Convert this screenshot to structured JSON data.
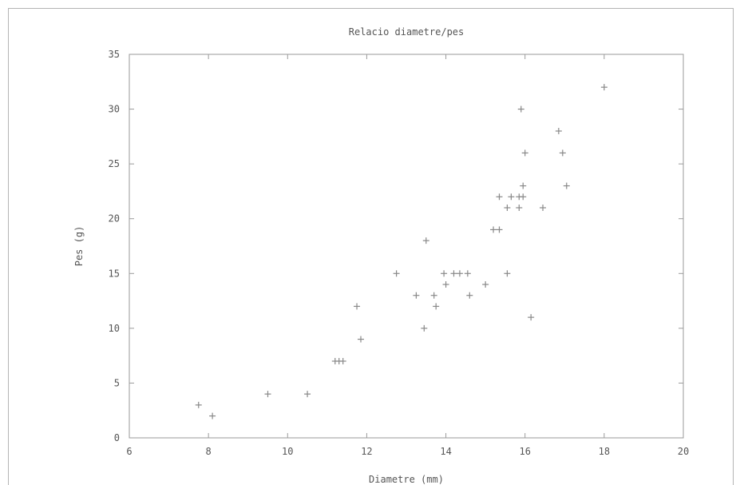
{
  "chart_data": {
    "type": "scatter",
    "title": "Relacio diametre/pes",
    "xlabel": "Diametre (mm)",
    "ylabel": "Pes (g)",
    "xlim": [
      6,
      20
    ],
    "ylim": [
      0,
      35
    ],
    "xticks": [
      "6",
      "8",
      "10",
      "12",
      "14",
      "16",
      "18",
      "20"
    ],
    "yticks": [
      "0",
      "5",
      "10",
      "15",
      "20",
      "25",
      "30",
      "35"
    ],
    "grid": false,
    "marker": "+",
    "marker_color": "#888888",
    "points": [
      {
        "x": 7.75,
        "y": 3
      },
      {
        "x": 8.1,
        "y": 2
      },
      {
        "x": 9.5,
        "y": 4
      },
      {
        "x": 10.5,
        "y": 4
      },
      {
        "x": 11.2,
        "y": 7
      },
      {
        "x": 11.3,
        "y": 7
      },
      {
        "x": 11.4,
        "y": 7
      },
      {
        "x": 11.75,
        "y": 12
      },
      {
        "x": 11.85,
        "y": 9
      },
      {
        "x": 12.75,
        "y": 15
      },
      {
        "x": 13.25,
        "y": 13
      },
      {
        "x": 13.45,
        "y": 10
      },
      {
        "x": 13.5,
        "y": 18
      },
      {
        "x": 13.7,
        "y": 13
      },
      {
        "x": 13.75,
        "y": 12
      },
      {
        "x": 13.95,
        "y": 15
      },
      {
        "x": 14.0,
        "y": 14
      },
      {
        "x": 14.2,
        "y": 15
      },
      {
        "x": 14.35,
        "y": 15
      },
      {
        "x": 14.55,
        "y": 15
      },
      {
        "x": 14.6,
        "y": 13
      },
      {
        "x": 15.0,
        "y": 14
      },
      {
        "x": 15.2,
        "y": 19
      },
      {
        "x": 15.35,
        "y": 19
      },
      {
        "x": 15.35,
        "y": 22
      },
      {
        "x": 15.55,
        "y": 21
      },
      {
        "x": 15.55,
        "y": 15
      },
      {
        "x": 15.65,
        "y": 22
      },
      {
        "x": 15.85,
        "y": 22
      },
      {
        "x": 15.85,
        "y": 21
      },
      {
        "x": 15.9,
        "y": 30
      },
      {
        "x": 15.95,
        "y": 22
      },
      {
        "x": 15.95,
        "y": 23
      },
      {
        "x": 16.0,
        "y": 26
      },
      {
        "x": 16.15,
        "y": 11
      },
      {
        "x": 16.45,
        "y": 21
      },
      {
        "x": 16.85,
        "y": 28
      },
      {
        "x": 16.95,
        "y": 26
      },
      {
        "x": 17.05,
        "y": 23
      },
      {
        "x": 18.0,
        "y": 32
      }
    ]
  }
}
